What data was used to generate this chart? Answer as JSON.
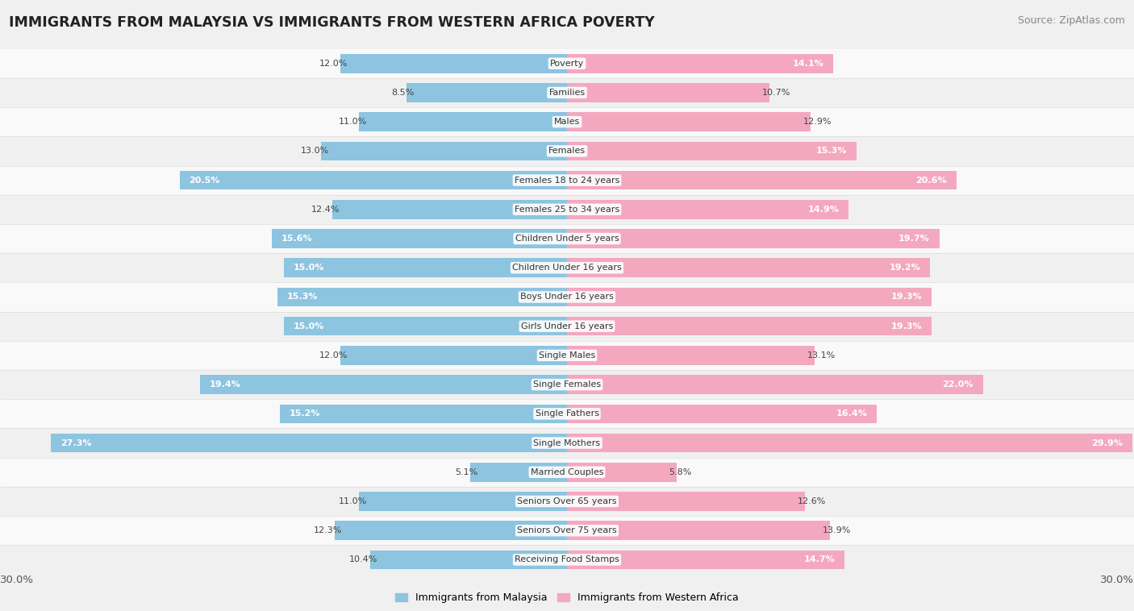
{
  "title": "IMMIGRANTS FROM MALAYSIA VS IMMIGRANTS FROM WESTERN AFRICA POVERTY",
  "source": "Source: ZipAtlas.com",
  "categories": [
    "Poverty",
    "Families",
    "Males",
    "Females",
    "Females 18 to 24 years",
    "Females 25 to 34 years",
    "Children Under 5 years",
    "Children Under 16 years",
    "Boys Under 16 years",
    "Girls Under 16 years",
    "Single Males",
    "Single Females",
    "Single Fathers",
    "Single Mothers",
    "Married Couples",
    "Seniors Over 65 years",
    "Seniors Over 75 years",
    "Receiving Food Stamps"
  ],
  "malaysia_values": [
    12.0,
    8.5,
    11.0,
    13.0,
    20.5,
    12.4,
    15.6,
    15.0,
    15.3,
    15.0,
    12.0,
    19.4,
    15.2,
    27.3,
    5.1,
    11.0,
    12.3,
    10.4
  ],
  "western_africa_values": [
    14.1,
    10.7,
    12.9,
    15.3,
    20.6,
    14.9,
    19.7,
    19.2,
    19.3,
    19.3,
    13.1,
    22.0,
    16.4,
    29.9,
    5.8,
    12.6,
    13.9,
    14.7
  ],
  "malaysia_color": "#8dc4e0",
  "western_africa_color": "#f4a8bf",
  "axis_max": 30.0,
  "inside_label_threshold": 14.0,
  "row_colors": [
    "#f9f9f9",
    "#f0f0f0"
  ],
  "row_edge_color": "#dddddd",
  "fig_bg": "#f0f0f0",
  "title_fontsize": 12.5,
  "source_fontsize": 9,
  "label_fontsize": 8,
  "value_fontsize": 8,
  "bar_height": 0.65,
  "legend_fontsize": 9
}
